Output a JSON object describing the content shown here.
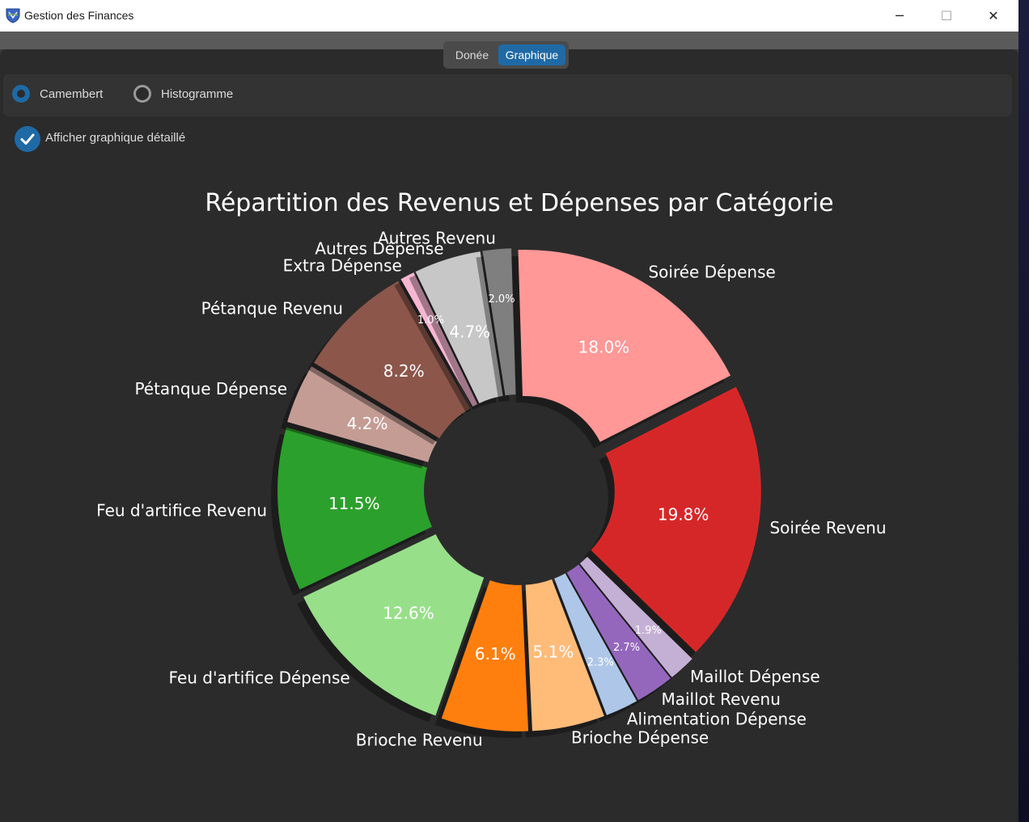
{
  "window": {
    "title": "Gestion des Finances",
    "controls": {
      "minimize": "─",
      "maximize": "☐",
      "close": "✕"
    }
  },
  "tabs": [
    {
      "label": "Donée",
      "selected": false
    },
    {
      "label": "Graphique",
      "selected": true
    }
  ],
  "options": {
    "camembert_label": "Camembert",
    "histogramme_label": "Histogramme",
    "selected": "Camembert",
    "detail_label": "Afficher graphique détaillé",
    "detail_checked": true
  },
  "colors": {
    "accent": "#1f6aa5",
    "background": "#2b2b2b",
    "text": "#ffffff"
  },
  "chart_data": {
    "type": "pie",
    "title": "Répartition des Revenus et Dépenses par Catégorie",
    "donut": true,
    "exploded": true,
    "legend": "none",
    "slices": [
      {
        "label": "Soirée Revenu",
        "value": 19.8,
        "pct_label": "19.8%",
        "color": "#d62728"
      },
      {
        "label": "Maillot Dépense",
        "value": 1.9,
        "pct_label": "1.9%",
        "color": "#c5b0d5"
      },
      {
        "label": "Maillot Revenu",
        "value": 2.7,
        "pct_label": "2.7%",
        "color": "#9467bd"
      },
      {
        "label": "Alimentation Dépense",
        "value": 2.3,
        "pct_label": "2.3%",
        "color": "#aec7e8"
      },
      {
        "label": "Brioche Dépense",
        "value": 5.1,
        "pct_label": "5.1%",
        "color": "#ffbb78"
      },
      {
        "label": "Brioche Revenu",
        "value": 6.1,
        "pct_label": "6.1%",
        "color": "#ff7f0e"
      },
      {
        "label": "Feu d'artifice Dépense",
        "value": 12.6,
        "pct_label": "12.6%",
        "color": "#98df8a"
      },
      {
        "label": "Feu d'artifice Revenu",
        "value": 11.5,
        "pct_label": "11.5%",
        "color": "#2ca02c"
      },
      {
        "label": "Pétanque Dépense",
        "value": 4.2,
        "pct_label": "4.2%",
        "color": "#c49c94"
      },
      {
        "label": "Pétanque Revenu",
        "value": 8.2,
        "pct_label": "8.2%",
        "color": "#8c564b"
      },
      {
        "label": "Extra Dépense",
        "value": 1.0,
        "pct_label": "1.0%",
        "color": "#f7b6d2"
      },
      {
        "label": "Autres Dépense",
        "value": 4.7,
        "pct_label": "4.7%",
        "color": "#c7c7c7"
      },
      {
        "label": "Autres Revenu",
        "value": 2.0,
        "pct_label": "2.0%",
        "color": "#7f7f7f"
      },
      {
        "label": "Soirée Dépense",
        "value": 18.0,
        "pct_label": "18.0%",
        "color": "#ff9896"
      }
    ]
  }
}
